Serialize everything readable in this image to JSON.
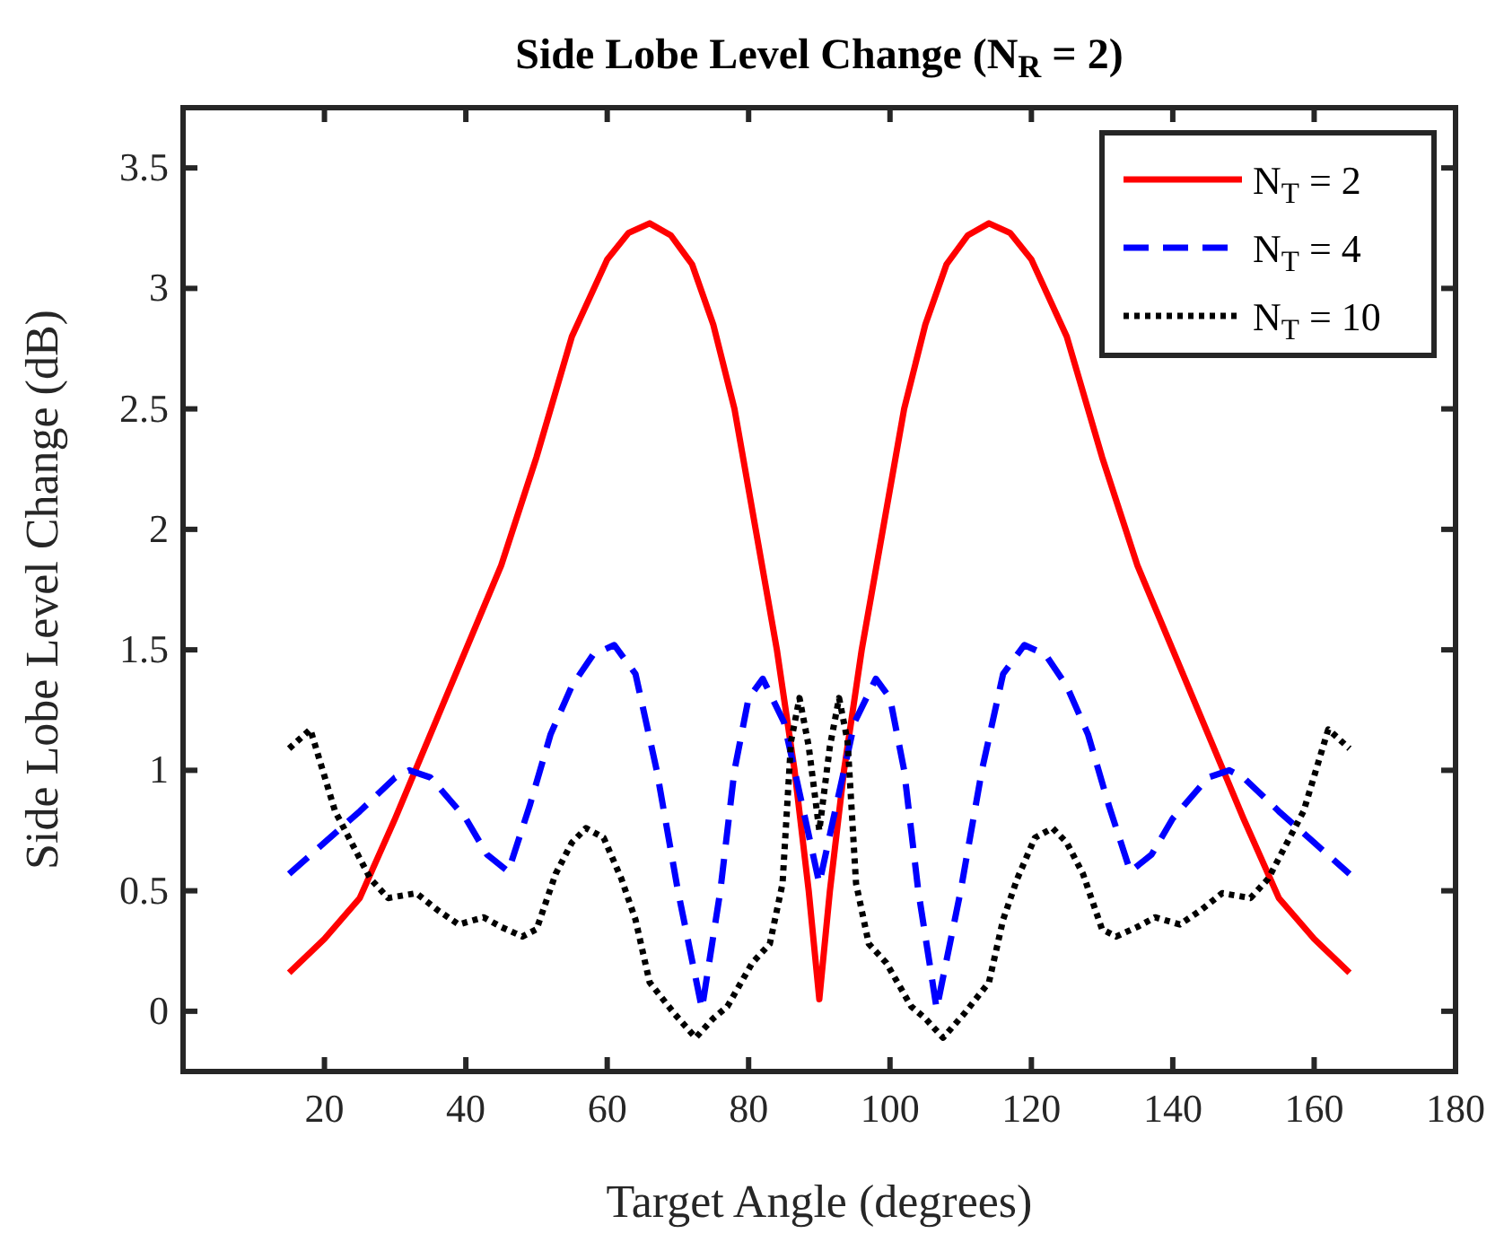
{
  "chart_data": {
    "type": "line",
    "title": "Side Lobe Level Change (N$_{R}$ = 2)",
    "xlabel": "Target Angle (degrees)",
    "ylabel": "Side Lobe Level Change (dB)",
    "xlim": [
      0,
      180
    ],
    "xticks": [
      20,
      40,
      60,
      80,
      100,
      120,
      140,
      160,
      180
    ],
    "ylim": [
      -0.25,
      3.75
    ],
    "yticks": [
      0,
      0.5,
      1,
      1.5,
      2,
      2.5,
      3,
      3.5
    ],
    "grid": false,
    "legend": "top right",
    "series": [
      {
        "name": "N$_{T}$ = 2",
        "color": "#ff0000",
        "line_style": "solid",
        "x": [
          15,
          20,
          25,
          30,
          35,
          40,
          45,
          50,
          55,
          60,
          63,
          66,
          69,
          72,
          75,
          78,
          81,
          84,
          86.5,
          88.5,
          90,
          91.5,
          93.5,
          96,
          99,
          102,
          105,
          108,
          111,
          114,
          117,
          120,
          125,
          130,
          135,
          140,
          145,
          150,
          155,
          160,
          165
        ],
        "values": [
          0.16,
          0.3,
          0.47,
          0.8,
          1.15,
          1.5,
          1.85,
          2.3,
          2.8,
          3.12,
          3.23,
          3.27,
          3.22,
          3.1,
          2.85,
          2.5,
          2.0,
          1.5,
          1.0,
          0.5,
          0.05,
          0.5,
          1.0,
          1.5,
          2.0,
          2.5,
          2.85,
          3.1,
          3.22,
          3.27,
          3.23,
          3.12,
          2.8,
          2.3,
          1.85,
          1.5,
          1.15,
          0.8,
          0.47,
          0.3,
          0.16
        ]
      },
      {
        "name": "N$_{T}$ = 4",
        "color": "#0000ff",
        "line_style": "dashed",
        "x": [
          15,
          20,
          25,
          30,
          32,
          35,
          40,
          43,
          46,
          49,
          52,
          55,
          58,
          61,
          64,
          67,
          70,
          73.4,
          76,
          78,
          80,
          82,
          85,
          88,
          90,
          92,
          95,
          98,
          100,
          102,
          104,
          106.6,
          110,
          113,
          116,
          119,
          122,
          125,
          128,
          131,
          134,
          137,
          140,
          145,
          148,
          150,
          155,
          160,
          165
        ],
        "values": [
          0.57,
          0.7,
          0.83,
          0.97,
          1.0,
          0.97,
          0.8,
          0.65,
          0.58,
          0.85,
          1.15,
          1.35,
          1.48,
          1.52,
          1.4,
          1.0,
          0.5,
          0.01,
          0.5,
          1.0,
          1.3,
          1.38,
          1.2,
          0.8,
          0.53,
          0.8,
          1.2,
          1.38,
          1.3,
          1.0,
          0.5,
          0.01,
          0.5,
          1.0,
          1.4,
          1.52,
          1.48,
          1.35,
          1.15,
          0.85,
          0.58,
          0.65,
          0.8,
          0.97,
          1.0,
          0.97,
          0.83,
          0.7,
          0.57
        ]
      },
      {
        "name": "N$_{T}$ = 10",
        "color": "#000000",
        "line_style": "dotted",
        "x": [
          15,
          18,
          21.5,
          26.5,
          29,
          33,
          36,
          39,
          42.5,
          45,
          48,
          50,
          52.7,
          55,
          57,
          59.5,
          62,
          64,
          66,
          69.5,
          72.5,
          75,
          77,
          80.5,
          83,
          84.8,
          86,
          87.2,
          88.5,
          90,
          91.5,
          92.8,
          94,
          95.2,
          97,
          99.5,
          103,
          105,
          107.5,
          110.5,
          114,
          116,
          118,
          120.5,
          123,
          125,
          127.3,
          130,
          132,
          135,
          137.5,
          141,
          144,
          147,
          151,
          153.5,
          158.5,
          162,
          165
        ],
        "values": [
          1.09,
          1.17,
          0.83,
          0.55,
          0.47,
          0.49,
          0.42,
          0.36,
          0.39,
          0.35,
          0.31,
          0.34,
          0.57,
          0.7,
          0.76,
          0.72,
          0.55,
          0.38,
          0.12,
          -0.01,
          -0.11,
          -0.03,
          0.02,
          0.2,
          0.28,
          0.53,
          1.12,
          1.3,
          1.1,
          0.75,
          1.1,
          1.3,
          1.12,
          0.53,
          0.28,
          0.2,
          0.02,
          -0.03,
          -0.11,
          -0.01,
          0.12,
          0.38,
          0.55,
          0.72,
          0.76,
          0.7,
          0.57,
          0.34,
          0.31,
          0.35,
          0.39,
          0.36,
          0.42,
          0.49,
          0.47,
          0.55,
          0.83,
          1.17,
          1.09
        ]
      }
    ]
  }
}
